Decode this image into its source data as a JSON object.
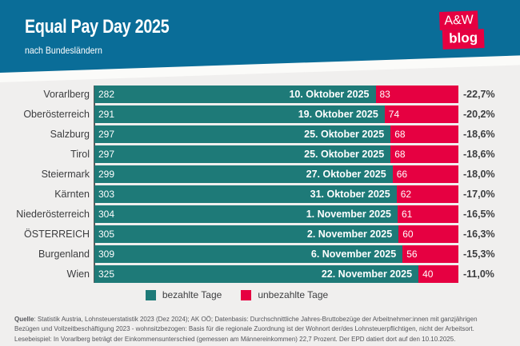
{
  "header": {
    "title": "Equal Pay Day 2025",
    "subtitle": "nach Bundesländern",
    "logo_line1": "A&W",
    "logo_line2": "blog"
  },
  "legend": {
    "paid_label": "bezahlte Tage",
    "unpaid_label": "unbezahlte Tage"
  },
  "footer": {
    "source_label": "Quelle",
    "line1_rest": ": Statistik Austria, Lohnsteuerstatistik 2023 (Dez 2024); AK OÖ; Datenbasis: Durchschnittliche Jahres-Bruttobezüge der Arbeitnehmer:innen mit ganzjährigen",
    "line2": "Bezügen und Vollzeitbeschäftigung 2023 - wohnsitzbezogen: Basis für die regionale Zuordnung ist der Wohnort der/des Lohnsteuerpflichtigen, nicht der Arbeitsort.",
    "line3": "Lesebeispiel: In Vorarlberg beträgt der Einkommensunterschied (gemessen am Männereinkommen) 22,7 Prozent. Der EPD datiert dort auf den 10.10.2025."
  },
  "colors": {
    "header_blue": "#0a6d98",
    "paid_teal": "#1e7a78",
    "unpaid_red": "#e60041",
    "background": "#f0efee",
    "text_dark": "#3c3d3f",
    "footer_gray": "#54555a"
  },
  "chart_data": {
    "type": "bar",
    "orientation": "horizontal-stacked",
    "title": "Equal Pay Day 2025",
    "subtitle": "nach Bundesländern",
    "legend": [
      "bezahlte Tage",
      "unbezahlte Tage"
    ],
    "legend_position": "bottom",
    "total_days": 365,
    "x_range": [
      0,
      365
    ],
    "grid": false,
    "series_names": [
      "bezahlte Tage",
      "unbezahlte Tage"
    ],
    "rows": [
      {
        "label": "Vorarlberg",
        "paid": 282,
        "date": "10. Oktober 2025",
        "unpaid": 83,
        "gap": "-22,7%"
      },
      {
        "label": "Oberösterreich",
        "paid": 291,
        "date": "19. Oktober 2025",
        "unpaid": 74,
        "gap": "-20,2%"
      },
      {
        "label": "Salzburg",
        "paid": 297,
        "date": "25. Oktober 2025",
        "unpaid": 68,
        "gap": "-18,6%"
      },
      {
        "label": "Tirol",
        "paid": 297,
        "date": "25. Oktober 2025",
        "unpaid": 68,
        "gap": "-18,6%"
      },
      {
        "label": "Steiermark",
        "paid": 299,
        "date": "27. Oktober 2025",
        "unpaid": 66,
        "gap": "-18,0%"
      },
      {
        "label": "Kärnten",
        "paid": 303,
        "date": "31. Oktober 2025",
        "unpaid": 62,
        "gap": "-17,0%"
      },
      {
        "label": "Niederösterreich",
        "paid": 304,
        "date": "1. November 2025",
        "unpaid": 61,
        "gap": "-16,5%"
      },
      {
        "label": "ÖSTERREICH",
        "paid": 305,
        "date": "2. November 2025",
        "unpaid": 60,
        "gap": "-16,3%"
      },
      {
        "label": "Burgenland",
        "paid": 309,
        "date": "6. November 2025",
        "unpaid": 56,
        "gap": "-15,3%"
      },
      {
        "label": "Wien",
        "paid": 325,
        "date": "22. November 2025",
        "unpaid": 40,
        "gap": "-11,0%"
      }
    ]
  }
}
